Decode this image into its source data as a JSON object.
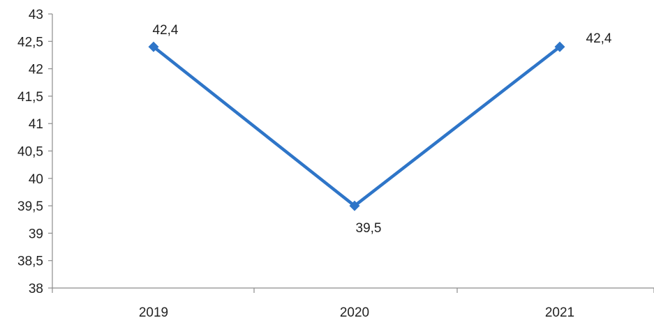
{
  "chart_data": {
    "type": "line",
    "title": "",
    "xlabel": "",
    "ylabel": "",
    "categories": [
      "2019",
      "2020",
      "2021"
    ],
    "series": [
      {
        "values": [
          42.4,
          39.5,
          42.4
        ],
        "data_labels": [
          "42,4",
          "39,5",
          "42,4"
        ]
      }
    ],
    "ylim": [
      38,
      43
    ],
    "y_ticks": [
      38,
      38.5,
      39,
      39.5,
      40,
      40.5,
      41,
      41.5,
      42,
      42.5,
      43
    ],
    "y_tick_labels": [
      "38",
      "38,5",
      "39",
      "39,5",
      "40",
      "40,5",
      "41",
      "41,5",
      "42",
      "42,5",
      "43"
    ],
    "grid": false,
    "legend": "none",
    "marker": "diamond",
    "colors": {
      "series": "#2e75c8",
      "axis": "#8c8c8c",
      "text": "#222222"
    }
  }
}
